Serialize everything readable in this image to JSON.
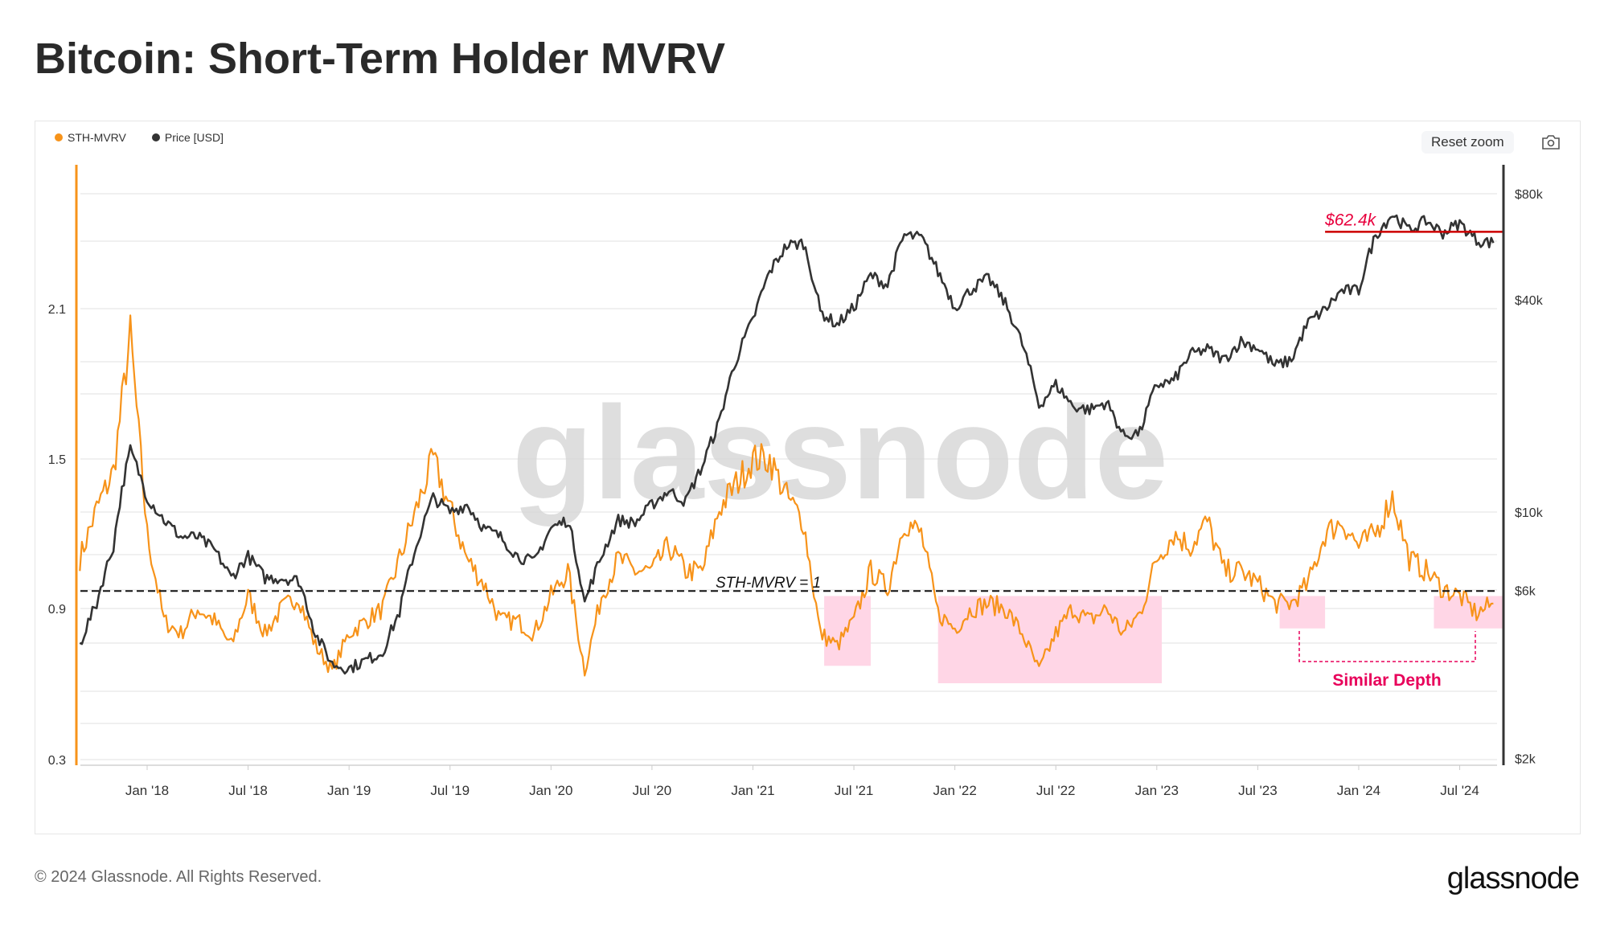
{
  "title": "Bitcoin: Short-Term Holder MVRV",
  "toolbar": {
    "reset_zoom": "Reset zoom",
    "camera_icon": "camera-icon"
  },
  "footer": {
    "copyright": "© 2024 Glassnode. All Rights Reserved.",
    "logo": "glassnode",
    "watermark": "glassnode"
  },
  "chart_data": {
    "type": "line",
    "title": "Bitcoin: Short-Term Holder MVRV",
    "legend": [
      {
        "name": "STH-MVRV",
        "color": "#f7931a"
      },
      {
        "name": "Price [USD]",
        "color": "#333333"
      }
    ],
    "legend_placement": "top-left",
    "grid": true,
    "x_ticks": [
      "Jan '18",
      "Jul '18",
      "Jan '19",
      "Jul '19",
      "Jan '20",
      "Jul '20",
      "Jan '21",
      "Jul '21",
      "Jan '22",
      "Jul '22",
      "Jan '23",
      "Jul '23",
      "Jan '24",
      "Jul '24"
    ],
    "left_axis": {
      "ticks": [
        "2.1",
        "1.5",
        "0.9",
        "0.3"
      ],
      "range": [
        0.3,
        2.55
      ]
    },
    "right_axis": {
      "scale": "log",
      "ticks": [
        "$80k",
        "$40k",
        "$10k",
        "$6k",
        "$2k"
      ],
      "range": [
        2000,
        100000
      ]
    },
    "x": [
      "2017-09",
      "2017-10",
      "2017-11",
      "2017-12",
      "2018-01",
      "2018-02",
      "2018-03",
      "2018-04",
      "2018-05",
      "2018-06",
      "2018-07",
      "2018-08",
      "2018-09",
      "2018-10",
      "2018-11",
      "2018-12",
      "2019-01",
      "2019-02",
      "2019-03",
      "2019-04",
      "2019-05",
      "2019-06",
      "2019-07",
      "2019-08",
      "2019-09",
      "2019-10",
      "2019-11",
      "2019-12",
      "2020-01",
      "2020-02",
      "2020-03",
      "2020-04",
      "2020-05",
      "2020-06",
      "2020-07",
      "2020-08",
      "2020-09",
      "2020-10",
      "2020-11",
      "2020-12",
      "2021-01",
      "2021-02",
      "2021-03",
      "2021-04",
      "2021-05",
      "2021-06",
      "2021-07",
      "2021-08",
      "2021-09",
      "2021-10",
      "2021-11",
      "2021-12",
      "2022-01",
      "2022-02",
      "2022-03",
      "2022-04",
      "2022-05",
      "2022-06",
      "2022-07",
      "2022-08",
      "2022-09",
      "2022-10",
      "2022-11",
      "2022-12",
      "2023-01",
      "2023-02",
      "2023-03",
      "2023-04",
      "2023-05",
      "2023-06",
      "2023-07",
      "2023-08",
      "2023-09",
      "2023-10",
      "2023-11",
      "2023-12",
      "2024-01",
      "2024-02",
      "2024-03",
      "2024-04",
      "2024-05",
      "2024-06",
      "2024-07",
      "2024-08",
      "2024-09"
    ],
    "series": [
      {
        "name": "STH-MVRV",
        "axis": "left",
        "color": "#f7931a",
        "values": [
          1.1,
          1.3,
          1.45,
          2.0,
          1.2,
          0.85,
          0.8,
          0.9,
          0.85,
          0.75,
          0.95,
          0.8,
          0.9,
          0.95,
          0.75,
          0.65,
          0.8,
          0.85,
          0.9,
          1.1,
          1.3,
          1.5,
          1.3,
          1.1,
          1.0,
          0.85,
          0.85,
          0.8,
          0.95,
          1.05,
          0.65,
          0.95,
          1.1,
          1.05,
          1.05,
          1.15,
          1.05,
          1.05,
          1.3,
          1.4,
          1.5,
          1.5,
          1.35,
          1.25,
          0.8,
          0.75,
          0.85,
          1.05,
          0.98,
          1.25,
          1.2,
          0.88,
          0.82,
          0.9,
          0.92,
          0.9,
          0.8,
          0.65,
          0.8,
          0.9,
          0.85,
          0.9,
          0.8,
          0.88,
          1.1,
          1.2,
          1.15,
          1.25,
          1.05,
          1.05,
          1.0,
          0.92,
          0.92,
          1.0,
          1.2,
          1.25,
          1.15,
          1.2,
          1.35,
          1.1,
          1.05,
          0.98,
          0.95,
          0.88,
          0.92
        ]
      },
      {
        "name": "Price [USD]",
        "axis": "right",
        "color": "#333333",
        "values": [
          4200,
          5500,
          8000,
          15000,
          11000,
          9500,
          8500,
          8500,
          7800,
          6500,
          7500,
          6500,
          6500,
          6400,
          4500,
          3700,
          3600,
          3800,
          4000,
          5200,
          8000,
          11000,
          10000,
          10500,
          9000,
          8500,
          7500,
          7200,
          9000,
          9500,
          5500,
          7500,
          9500,
          9300,
          10500,
          11500,
          10700,
          13500,
          18000,
          27000,
          35000,
          48000,
          57000,
          58000,
          37000,
          34000,
          38000,
          47000,
          44000,
          61000,
          60000,
          48000,
          38000,
          43000,
          46000,
          39000,
          30000,
          20000,
          23000,
          20000,
          19500,
          20500,
          16500,
          16800,
          23000,
          23500,
          28000,
          29000,
          27000,
          30500,
          29300,
          26000,
          27000,
          34500,
          37500,
          42500,
          42500,
          61000,
          70000,
          63000,
          67000,
          62000,
          66000,
          59000,
          58000
        ]
      }
    ],
    "annotations": {
      "mvrv_one": {
        "label": "STH-MVRV = 1",
        "value": 0.97
      },
      "price_line": {
        "label": "$62.4k",
        "value": 62400,
        "from": "2023-11",
        "to": "2024-09-20",
        "color": "#e8003d"
      },
      "shaded": [
        {
          "from": "2021-05-08",
          "to": "2021-08-01",
          "low": 0.67,
          "high": 0.95
        },
        {
          "from": "2021-12-01",
          "to": "2023-01-10",
          "low": 0.6,
          "high": 0.95
        },
        {
          "from": "2023-08-10",
          "to": "2023-11-01",
          "low": 0.82,
          "high": 0.95
        },
        {
          "from": "2024-05-15",
          "to": "2024-09-20",
          "low": 0.82,
          "high": 0.95
        }
      ],
      "similar_depth": {
        "label": "Similar Depth",
        "color": "#e8005a"
      }
    }
  }
}
